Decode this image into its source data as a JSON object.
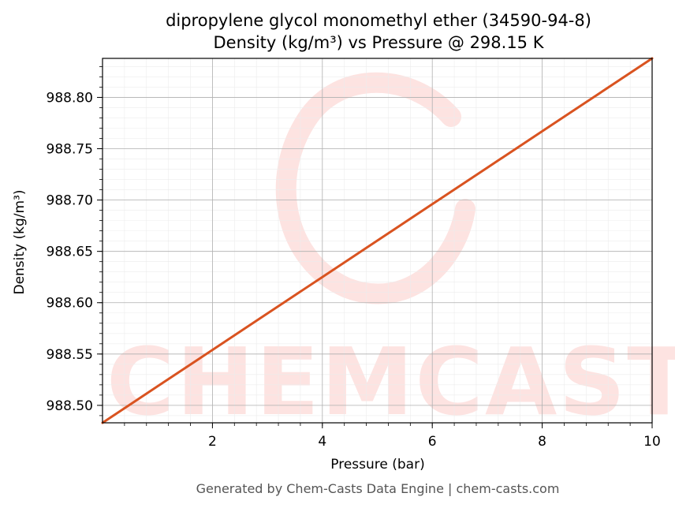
{
  "chart_data": {
    "type": "line",
    "title": "dipropylene glycol monomethyl ether (34590-94-8)",
    "subtitle": "Density (kg/m³) vs Pressure @ 298.15 K",
    "xlabel": "Pressure (bar)",
    "ylabel": "Density (kg/m³)",
    "xlim": [
      0,
      10
    ],
    "ylim": [
      988.483,
      988.838
    ],
    "x_ticks": [
      2,
      4,
      6,
      8,
      10
    ],
    "x_tick_labels": [
      "2",
      "4",
      "6",
      "8",
      "10"
    ],
    "y_ticks": [
      988.5,
      988.55,
      988.6,
      988.65,
      988.7,
      988.75,
      988.8
    ],
    "y_tick_labels": [
      "988.50",
      "988.55",
      "988.60",
      "988.65",
      "988.70",
      "988.75",
      "988.80"
    ],
    "grid": true,
    "series": [
      {
        "color": "#d95320",
        "x": [
          0,
          1,
          2,
          3,
          4,
          5,
          6,
          7,
          8,
          9,
          10
        ],
        "y": [
          988.483,
          988.5185,
          988.554,
          988.5895,
          988.625,
          988.6605,
          988.696,
          988.7315,
          988.767,
          988.8025,
          988.838
        ]
      }
    ]
  },
  "watermark": {
    "text": "CHEMCASTS",
    "color": "#fde3e1"
  },
  "footer": "Generated by Chem-Casts Data Engine | chem-casts.com"
}
